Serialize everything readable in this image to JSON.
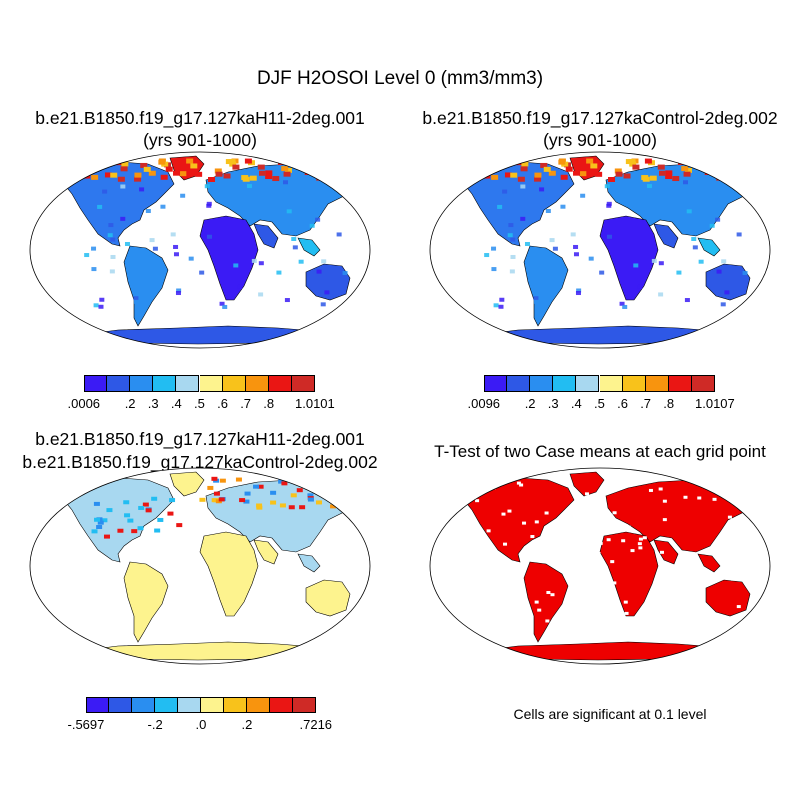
{
  "main_title": "DJF H2OSOI Level 0 (mm3/mm3)",
  "panels": [
    {
      "title_line1": "b.e21.B1850.f19_g17.127kaH11-2deg.001",
      "title_line2": "(yrs 901-1000)"
    },
    {
      "title_line1": "b.e21.B1850.f19_g17.127kaControl-2deg.002",
      "title_line2": "(yrs 901-1000)"
    },
    {
      "title_line1": "b.e21.B1850.f19_g17.127kaH11-2deg.001",
      "title_line2": "b.e21.B1850.f19_g17.127kaControl-2deg.002"
    },
    {
      "title_line1": "T-Test of two Case means at each grid point"
    }
  ],
  "colorbars": {
    "cb1": {
      "labels": [
        ".0006",
        ".2",
        ".3",
        ".4",
        ".5",
        ".6",
        ".7",
        ".8",
        "1.0101"
      ]
    },
    "cb2": {
      "labels": [
        ".0096",
        ".2",
        ".3",
        ".4",
        ".5",
        ".6",
        ".7",
        ".8",
        "1.0107"
      ]
    },
    "cb3": {
      "labels": [
        "-.5697",
        "-.2",
        ".0",
        ".2",
        ".7216"
      ]
    }
  },
  "colors": {
    "abs_scale": [
      "#3b1bf5",
      "#2e58e6",
      "#2a8ef0",
      "#22bdf2",
      "#a8d8f0",
      "#fdf38e",
      "#f8c21b",
      "#f8940e",
      "#ea1614",
      "#cf2a26"
    ],
    "diff_scale": [
      "#3b1bf5",
      "#2e58e6",
      "#2a8ef0",
      "#22bdf2",
      "#a8d8f0",
      "#fdf38e",
      "#f8c21b",
      "#f8940e",
      "#ea1614",
      "#cf2a26"
    ],
    "significant": "#ee0000"
  },
  "note": "Cells are significant at 0.1 level"
}
